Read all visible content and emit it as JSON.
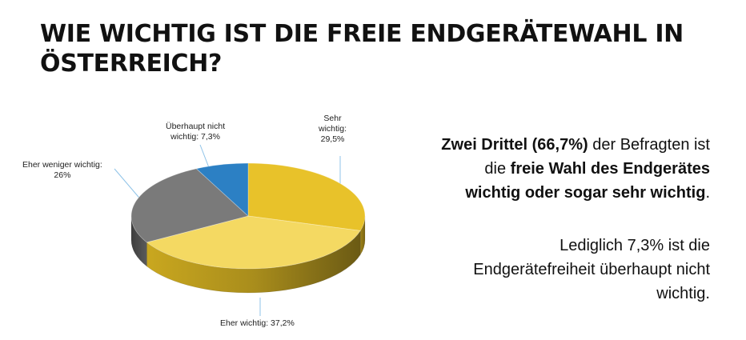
{
  "title": "WIE WICHTIG IST DIE FREIE ENDGERÄTEWAHL IN ÖSTERREICH?",
  "chart_data": {
    "type": "pie",
    "style": "3d",
    "slices": [
      {
        "name": "Sehr wichtig",
        "value": 29.5,
        "label_lines": [
          "Sehr",
          "wichtig:",
          "29,5%"
        ],
        "color": "#e8c22a"
      },
      {
        "name": "Eher wichtig",
        "value": 37.2,
        "label_lines": [
          "Eher wichtig: 37,2%"
        ],
        "color": "#f4d962"
      },
      {
        "name": "Eher weniger wichtig",
        "value": 26,
        "label_lines": [
          "Eher weniger wichtig:",
          "26%"
        ],
        "color": "#7a7a7a"
      },
      {
        "name": "Überhaupt nicht wichtig",
        "value": 7.3,
        "label_lines": [
          "Überhaupt nicht",
          "wichtig: 7,3%"
        ],
        "color": "#2c80c4"
      }
    ]
  },
  "summary": {
    "p1_bold1": "Zwei Drittel (66,7%)",
    "p1_text1": " der Befragten ist",
    "p1_text2": "die ",
    "p1_bold2": "freie Wahl des Endgerätes",
    "p1_bold3": "wichtig oder sogar sehr wichtig",
    "p1_text3": ".",
    "p2_line1": "Lediglich 7,3% ist die",
    "p2_line2": "Endgerätefreiheit überhaupt nicht",
    "p2_line3": "wichtig."
  }
}
